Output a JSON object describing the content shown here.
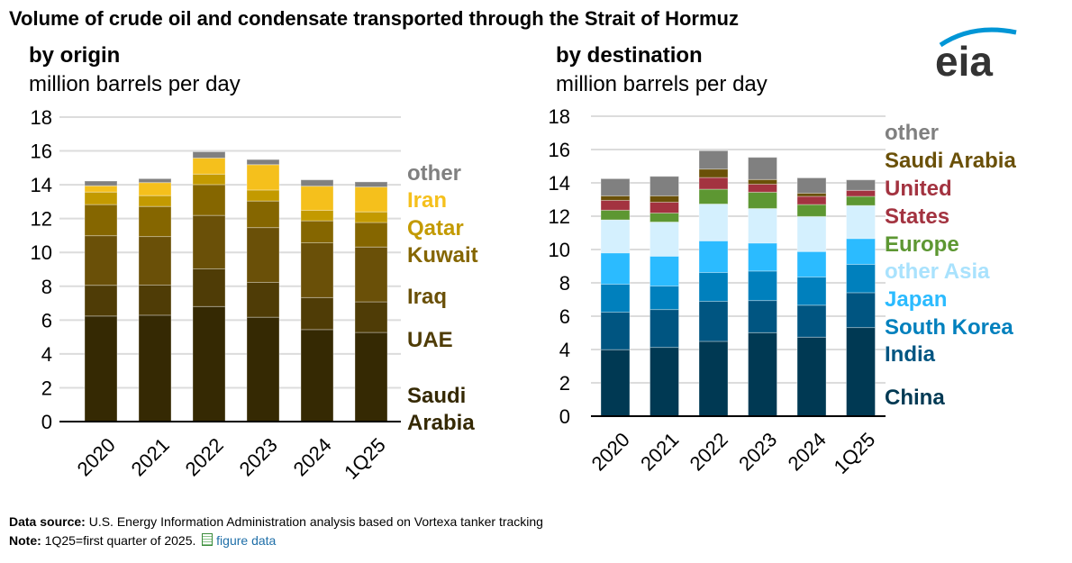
{
  "title": "Volume of crude oil and condensate transported through the Strait of Hormuz",
  "logo_text": "eia",
  "footer": {
    "source_label": "Data source:",
    "source_text": "U.S. Energy Information Administration analysis based on Vortexa tanker tracking",
    "note_label": "Note:",
    "note_text": "1Q25=first quarter of 2025.",
    "link_text": "figure data",
    "link_icon": "spreadsheet-icon"
  },
  "chart_data": [
    {
      "type": "bar",
      "stacked": true,
      "title": "by origin",
      "ylabel": "million barrels per day",
      "ylim": [
        0,
        18
      ],
      "yticks": [
        0,
        2,
        4,
        6,
        8,
        10,
        12,
        14,
        16,
        18
      ],
      "grid": true,
      "legend_placement": "right",
      "categories": [
        "2020",
        "2021",
        "2022",
        "2023",
        "2024",
        "1Q25"
      ],
      "series": [
        {
          "name": "Saudi Arabia",
          "label_lines": [
            "Saudi",
            "Arabia"
          ],
          "color": "#352903",
          "values": [
            6.24,
            6.29,
            6.8,
            6.17,
            5.44,
            5.27
          ]
        },
        {
          "name": "UAE",
          "label_lines": [
            "UAE"
          ],
          "color": "#4f3c06",
          "values": [
            1.82,
            1.78,
            2.23,
            2.06,
            1.89,
            1.81
          ]
        },
        {
          "name": "Iraq",
          "label_lines": [
            "Iraq"
          ],
          "color": "#6a5008",
          "values": [
            2.93,
            2.87,
            3.16,
            3.24,
            3.24,
            3.24
          ]
        },
        {
          "name": "Kuwait",
          "label_lines": [
            "Kuwait"
          ],
          "color": "#856600",
          "values": [
            1.84,
            1.78,
            1.82,
            1.57,
            1.3,
            1.45
          ]
        },
        {
          "name": "Qatar",
          "label_lines": [
            "Qatar"
          ],
          "color": "#c39a00",
          "values": [
            0.74,
            0.64,
            0.62,
            0.65,
            0.62,
            0.63
          ]
        },
        {
          "name": "Iran",
          "label_lines": [
            "Iran"
          ],
          "color": "#f5c01c",
          "values": [
            0.37,
            0.77,
            0.95,
            1.5,
            1.43,
            1.47
          ]
        },
        {
          "name": "other",
          "label_lines": [
            "other"
          ],
          "color": "#808080",
          "values": [
            0.28,
            0.23,
            0.37,
            0.3,
            0.37,
            0.3
          ]
        }
      ]
    },
    {
      "type": "bar",
      "stacked": true,
      "title": "by destination",
      "ylabel": "million barrels per day",
      "ylim": [
        0,
        18
      ],
      "yticks": [
        0,
        2,
        4,
        6,
        8,
        10,
        12,
        14,
        16,
        18
      ],
      "grid": true,
      "legend_placement": "right",
      "categories": [
        "2020",
        "2021",
        "2022",
        "2023",
        "2024",
        "1Q25"
      ],
      "series": [
        {
          "name": "China",
          "label_lines": [
            "China"
          ],
          "color": "#003953",
          "values": [
            3.99,
            4.13,
            4.49,
            5.01,
            4.74,
            5.32
          ]
        },
        {
          "name": "India",
          "label_lines": [
            "India"
          ],
          "color": "#005581",
          "values": [
            2.25,
            2.27,
            2.4,
            1.93,
            1.92,
            2.09
          ]
        },
        {
          "name": "South Korea",
          "label_lines": [
            "South Korea"
          ],
          "color": "#0080bd",
          "values": [
            1.68,
            1.41,
            1.73,
            1.77,
            1.69,
            1.7
          ]
        },
        {
          "name": "Japan",
          "label_lines": [
            "Japan"
          ],
          "color": "#2bbbff",
          "values": [
            1.88,
            1.79,
            1.9,
            1.68,
            1.53,
            1.55
          ]
        },
        {
          "name": "other Asia",
          "label_lines": [
            "other Asia"
          ],
          "color": "#d4f0fe",
          "values": [
            1.98,
            2.05,
            2.21,
            2.07,
            2.1,
            1.98
          ]
        },
        {
          "name": "Europe",
          "label_lines": [
            "Europe"
          ],
          "color": "#5d9732",
          "values": [
            0.58,
            0.54,
            0.89,
            0.98,
            0.72,
            0.55
          ]
        },
        {
          "name": "United States",
          "label_lines": [
            "United",
            "States"
          ],
          "color": "#a33340",
          "values": [
            0.59,
            0.65,
            0.7,
            0.48,
            0.49,
            0.36
          ]
        },
        {
          "name": "Saudi Arabia",
          "label_lines": [
            "Saudi Arabia"
          ],
          "color": "#6a5008",
          "values": [
            0.27,
            0.38,
            0.51,
            0.28,
            0.19,
            0.0
          ]
        },
        {
          "name": "other",
          "label_lines": [
            "other"
          ],
          "color": "#808080",
          "values": [
            1.03,
            1.17,
            1.1,
            1.33,
            0.92,
            0.63
          ]
        }
      ]
    }
  ]
}
